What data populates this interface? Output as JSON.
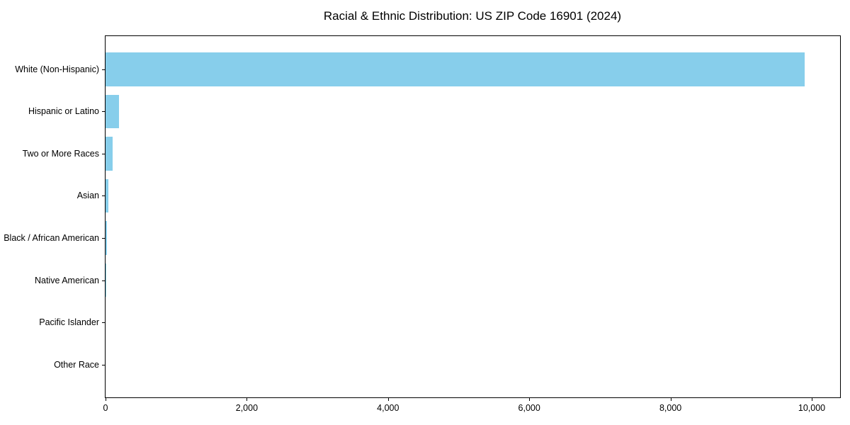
{
  "figure": {
    "background_color": "#ffffff"
  },
  "chart_data": {
    "type": "bar",
    "orientation": "horizontal",
    "title": "Racial & Ethnic Distribution: US ZIP Code 16901 (2024)",
    "categories": [
      "White (Non-Hispanic)",
      "Hispanic or Latino",
      "Two or More Races",
      "Asian",
      "Black / African American",
      "Native American",
      "Pacific Islander",
      "Other Race"
    ],
    "values": [
      9900,
      190,
      100,
      40,
      25,
      10,
      0,
      0
    ],
    "xlabel": "",
    "ylabel": "",
    "xlim": [
      0,
      10400
    ],
    "xticks": [
      0,
      2000,
      4000,
      6000,
      8000,
      10000
    ],
    "xtick_labels": [
      "0",
      "2,000",
      "4,000",
      "6,000",
      "8,000",
      "10,000"
    ],
    "bar_color": "#87CEEB",
    "axis_color": "#000000",
    "text_color": "#000000",
    "grid": false,
    "legend_position": "none"
  }
}
